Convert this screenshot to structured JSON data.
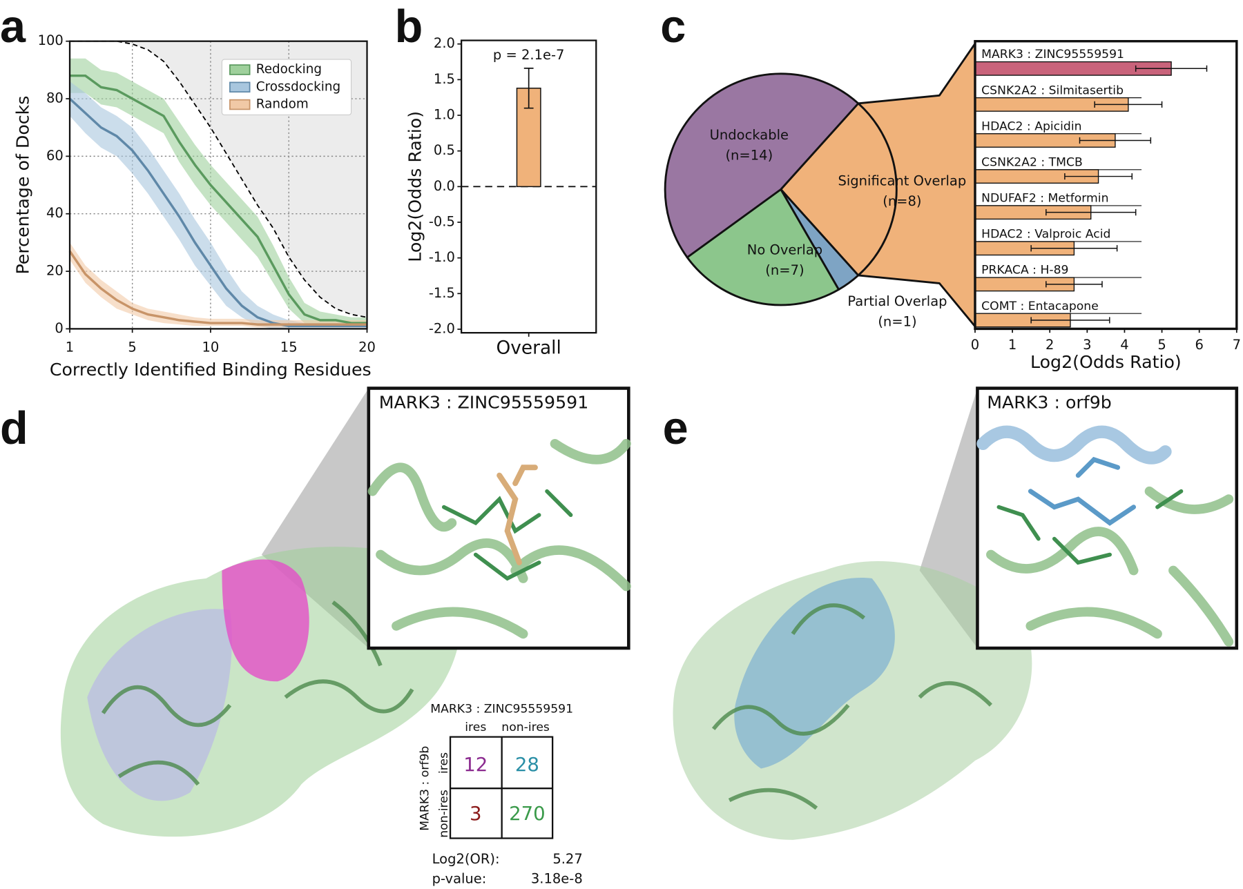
{
  "panel_labels": [
    "a",
    "b",
    "c",
    "d",
    "e"
  ],
  "chart_data": [
    {
      "type": "line",
      "xlabel": "Correctly Identified Binding Residues",
      "ylabel": "Percentage of Docks",
      "x": [
        1,
        2,
        3,
        4,
        5,
        6,
        7,
        8,
        9,
        10,
        11,
        12,
        13,
        14,
        15,
        16,
        17,
        18,
        19,
        20
      ],
      "xlim": [
        1,
        20
      ],
      "xticks": [
        1,
        5,
        10,
        15,
        20
      ],
      "ylim": [
        0,
        100
      ],
      "yticks": [
        0,
        20,
        40,
        60,
        80,
        100
      ],
      "grid": true,
      "legend": "upper right",
      "series": [
        {
          "name": "Redocking",
          "color": "#5a9a5e",
          "band_color": "#9fd09c",
          "values": [
            88,
            88,
            84,
            83,
            80,
            77,
            74,
            65,
            57,
            50,
            44,
            38,
            32,
            22,
            12,
            5,
            3,
            3,
            2,
            2
          ],
          "lower": [
            82,
            82,
            78,
            77,
            74,
            71,
            68,
            58,
            50,
            43,
            37,
            31,
            25,
            16,
            7,
            2,
            1,
            1,
            1,
            1
          ],
          "upper": [
            94,
            94,
            90,
            89,
            86,
            83,
            80,
            72,
            64,
            57,
            51,
            45,
            39,
            29,
            18,
            9,
            6,
            5,
            4,
            4
          ]
        },
        {
          "name": "Crossdocking",
          "color": "#5f88a8",
          "band_color": "#a8c6de",
          "values": [
            80,
            75,
            70,
            67,
            62,
            55,
            47,
            39,
            30,
            22,
            14,
            8,
            4,
            2,
            1,
            1,
            1,
            1,
            1,
            1
          ],
          "lower": [
            74,
            68,
            63,
            60,
            54,
            47,
            39,
            31,
            22,
            15,
            8,
            4,
            1,
            0,
            0,
            0,
            0,
            0,
            0,
            0
          ],
          "upper": [
            86,
            82,
            77,
            74,
            70,
            63,
            55,
            47,
            38,
            30,
            21,
            13,
            8,
            5,
            3,
            2,
            2,
            2,
            2,
            2
          ]
        },
        {
          "name": "Random",
          "color": "#c89468",
          "band_color": "#f1c9a6",
          "values": [
            27,
            19,
            14,
            10,
            7,
            5,
            4,
            3,
            2.5,
            2,
            2,
            2,
            1.5,
            1.5,
            1.5,
            1.5,
            1.5,
            1.5,
            1.5,
            1.5
          ],
          "lower": [
            24,
            16,
            11,
            7,
            5,
            3,
            2,
            1.5,
            1,
            1,
            1,
            1,
            0.5,
            0.5,
            0.5,
            0.5,
            0.5,
            0.5,
            0.5,
            0.5
          ],
          "upper": [
            30,
            22,
            17,
            13,
            9,
            7,
            6,
            5,
            4,
            3.5,
            3.5,
            3.5,
            3,
            3,
            3,
            3,
            3,
            3,
            3,
            3
          ]
        },
        {
          "color": "#000000",
          "style": "dashed",
          "shade": "#ececec",
          "values": [
            100,
            100,
            100,
            100,
            99,
            97,
            93,
            86,
            78,
            70,
            61,
            52,
            43,
            35,
            25,
            17,
            11,
            7,
            5,
            4
          ]
        }
      ]
    },
    {
      "type": "bar",
      "categories": [
        "Overall"
      ],
      "values": [
        1.38
      ],
      "errors": [
        0.28
      ],
      "color": "#f0b27a",
      "ylabel": "Log2(Odds Ratio)",
      "annotation": "p = 2.1e-7",
      "reference_line": 0,
      "ylim": [
        -2.05,
        2.05
      ],
      "yticks": [
        {
          "value": -2,
          "label": "-2.0"
        },
        -1.5,
        {
          "value": -1,
          "label": "-1.0"
        },
        -0.5,
        {
          "value": 0,
          "label": "0.0"
        },
        0.5,
        {
          "value": 1,
          "label": "1.0"
        },
        1.5,
        {
          "value": 2,
          "label": "2.0"
        }
      ]
    },
    {
      "type": "pie",
      "categories": [
        "Significant Overlap",
        "Partial Overlap",
        "No Overlap",
        "Undockable"
      ],
      "values": [
        8,
        1,
        7,
        14
      ],
      "value_labels": [
        "(n=8)",
        "(n=1)",
        "(n=7)",
        "(n=14)"
      ],
      "colors": [
        "#f0b27a",
        "#7ea4c4",
        "#8cc68c",
        "#9a77a2"
      ]
    },
    {
      "type": "bar",
      "orientation": "horizontal",
      "categories": [
        "MARK3 : ZINC95559591",
        "CSNK2A2 : Silmitasertib",
        "HDAC2 : Apicidin",
        "CSNK2A2 : TMCB",
        "NDUFAF2 : Metformin",
        "HDAC2 : Valproic Acid",
        "PRKACA : H-89",
        "COMT : Entacapone"
      ],
      "values": [
        5.25,
        4.1,
        3.75,
        3.3,
        3.1,
        2.65,
        2.65,
        2.55
      ],
      "errors": [
        0.95,
        0.9,
        0.95,
        0.9,
        1.2,
        1.15,
        0.75,
        1.05
      ],
      "colors": [
        "#c9637b",
        "#f0b27a",
        "#f0b27a",
        "#f0b27a",
        "#f0b27a",
        "#f0b27a",
        "#f0b27a",
        "#f0b27a"
      ],
      "xlabel": "Log2(Odds Ratio)",
      "xlim": [
        0,
        7
      ],
      "xticks": [
        0,
        1,
        2,
        3,
        4,
        5,
        6,
        7
      ]
    }
  ],
  "panel_d": {
    "inset_title": "MARK3 : ZINC95559591",
    "table": {
      "title": "MARK3 : ZINC95559591",
      "row_title": "MARK3 : orf9b",
      "columns": [
        "ires",
        "non-ires"
      ],
      "rows": [
        "ires",
        "non-ires"
      ],
      "cells": [
        [
          12,
          28
        ],
        [
          3,
          270
        ]
      ],
      "stats": [
        [
          "Log2(OR):",
          5.27
        ],
        [
          "p-value:",
          "3.18e-8"
        ]
      ]
    }
  },
  "panel_e": {
    "inset_title": "MARK3 : orf9b"
  }
}
